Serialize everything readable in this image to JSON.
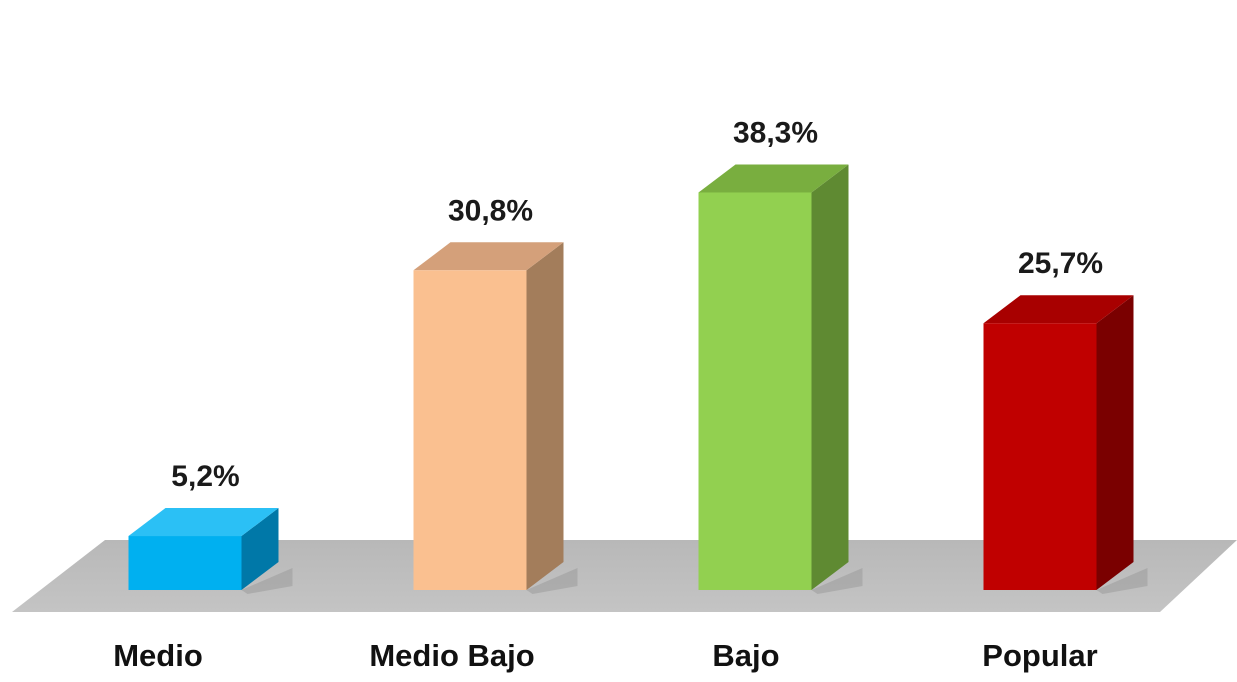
{
  "chart_data": {
    "type": "bar",
    "style": "3d-column",
    "title": "",
    "xlabel": "",
    "ylabel": "",
    "grid": false,
    "legend": "none",
    "categories": [
      "Medio",
      "Medio Bajo",
      "Bajo",
      "Popular"
    ],
    "values": [
      5.2,
      30.8,
      38.3,
      25.7
    ],
    "value_labels": [
      "5,2%",
      "30,8%",
      "38,3%",
      "25,7%"
    ],
    "ylim": [
      0,
      45
    ],
    "colors": {
      "Medio": {
        "front": "#00b0f0",
        "top": "#2bc0f5",
        "side": "#0078a8"
      },
      "Medio Bajo": {
        "front": "#fac090",
        "top": "#d4a07a",
        "side": "#a37d5b"
      },
      "Bajo": {
        "front": "#92d050",
        "top": "#79ae3f",
        "side": "#5f8a32"
      },
      "Popular": {
        "front": "#c00000",
        "top": "#a80000",
        "side": "#7a0000"
      }
    },
    "floor_color": "#bfbfbf"
  }
}
